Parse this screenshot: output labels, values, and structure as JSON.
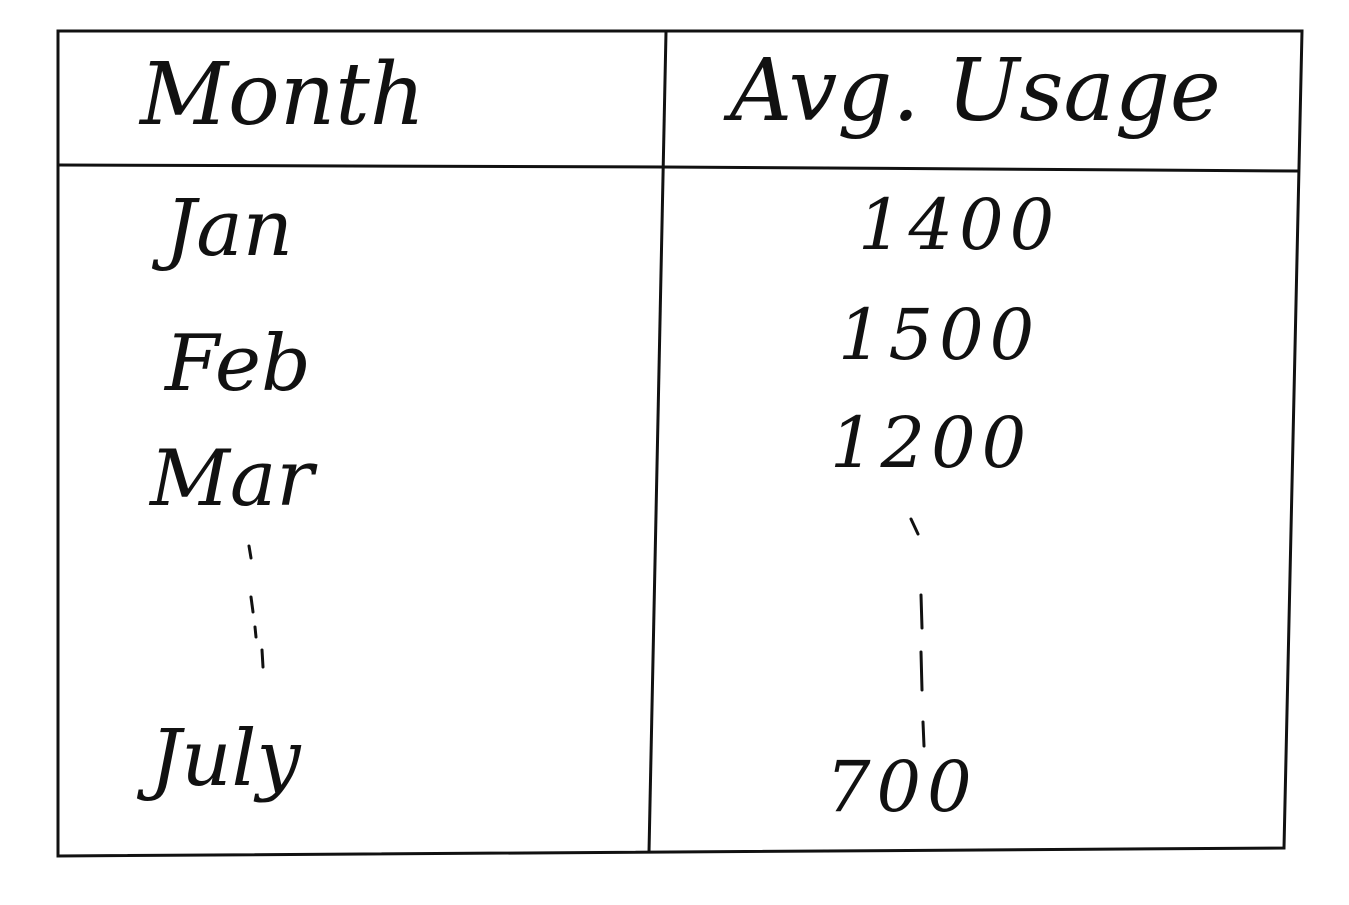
{
  "table": {
    "headers": {
      "month": "Month",
      "usage": "Avg. Usage"
    },
    "rows": [
      {
        "month": "Jan",
        "usage": "1400"
      },
      {
        "month": "Feb",
        "usage": "1500"
      },
      {
        "month": "Mar",
        "usage": "1200"
      },
      {
        "month": "July",
        "usage": "700"
      }
    ]
  },
  "ink_color": "#111111"
}
